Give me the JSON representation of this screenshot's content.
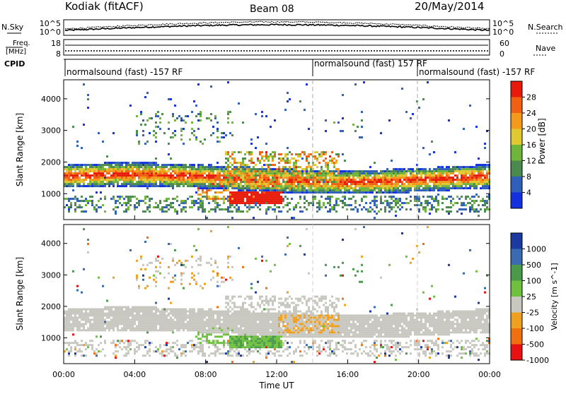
{
  "header": {
    "title": "Kodiak (fitACF)",
    "beam": "Beam 08",
    "date": "20/May/2014"
  },
  "top_panels": {
    "nsky_label": "N.Sky",
    "nsky_top": "10^5",
    "nsky_bottom": "10^0",
    "nsearch_label": "N.Search",
    "nsearch_top": "10^5",
    "nsearch_bottom": "10^0",
    "freq_label_1": "Freq.",
    "freq_label_2": "[MHz]",
    "freq_top": "18",
    "freq_bottom": "8",
    "nave_label": "Nave",
    "nave_top": "60",
    "nave_bottom": "0",
    "cpid_label": "CPID",
    "cpid_segments": [
      "normalsound (fast) -157 RF",
      "normalsound (fast) 157 RF",
      "normalsound (fast) -157 RF"
    ]
  },
  "chart_data": [
    {
      "type": "heatmap",
      "panel": "power",
      "ylabel": "Slant Range [km]",
      "yticks": [
        "1000",
        "2000",
        "3000",
        "4000"
      ],
      "ylim": [
        180,
        4600
      ],
      "colorbar_label": "Power [dB]",
      "colorbar_ticks": [
        "28",
        "24",
        "20",
        "16",
        "12",
        "8",
        "4"
      ],
      "colors": [
        "#1230e0",
        "#2f5fb8",
        "#4a8a4f",
        "#6fb53a",
        "#e0c830",
        "#f39a1a",
        "#f06010",
        "#e81a0a"
      ],
      "echo_regions": [
        {
          "name": "main band",
          "time_h": [
            0,
            24
          ],
          "range_km": [
            1000,
            1800
          ]
        },
        {
          "name": "strong patch",
          "time_h": [
            9.5,
            12
          ],
          "range_km": [
            700,
            1000
          ]
        },
        {
          "name": "upper echoes",
          "time_h": [
            4,
            9
          ],
          "range_km": [
            2600,
            3500
          ]
        }
      ]
    },
    {
      "type": "heatmap",
      "panel": "velocity",
      "ylabel": "Slant Range [km]",
      "xlabel": "Time UT",
      "xticks": [
        "00:00",
        "04:00",
        "08:00",
        "12:00",
        "16:00",
        "20:00",
        "00:00"
      ],
      "yticks": [
        "1000",
        "2000",
        "3000",
        "4000"
      ],
      "ylim": [
        180,
        4600
      ],
      "colorbar_label": "Velocity [m s^-1]",
      "colorbar_ticks": [
        "1000",
        "500",
        "100",
        "25",
        "-25",
        "-100",
        "-500",
        "-1000"
      ],
      "colors": [
        "#1a3aa0",
        "#3a6ab0",
        "#4a9a4a",
        "#70c040",
        "#c8c8c0",
        "#f0a020",
        "#f07010",
        "#e81010"
      ],
      "echo_regions": [
        {
          "name": "ground scatter",
          "time_h": [
            0,
            24
          ],
          "range_km": [
            1000,
            1800
          ]
        },
        {
          "name": "positive velocity",
          "time_h": [
            8,
            11.5
          ],
          "range_km": [
            700,
            1300
          ]
        },
        {
          "name": "negative velocity",
          "time_h": [
            12,
            15
          ],
          "range_km": [
            1200,
            1700
          ]
        }
      ]
    }
  ]
}
